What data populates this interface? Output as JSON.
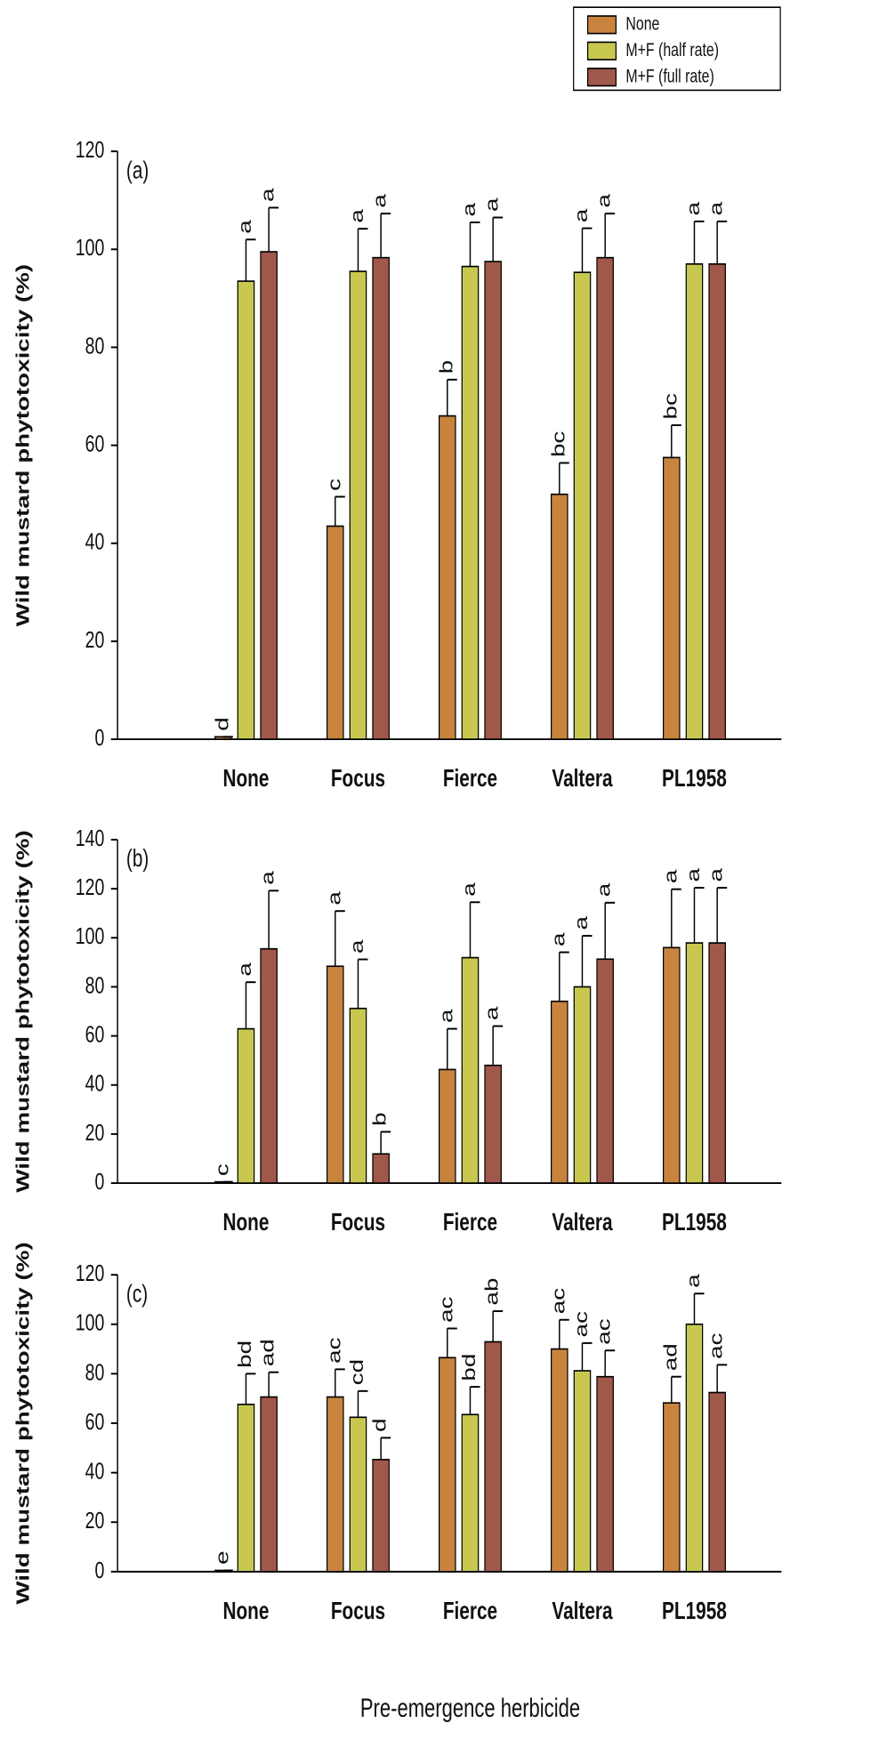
{
  "chart_data": [
    {
      "type": "bar",
      "panel_label": "(a)",
      "ylabel": "Wild mustard phytotoxicity (%)",
      "categories": [
        "None",
        "Focus",
        "Fierce",
        "Valtera",
        "PL1958"
      ],
      "ylim": [
        0,
        120
      ],
      "yticks": [
        0,
        20,
        40,
        60,
        80,
        100,
        120
      ],
      "series": [
        {
          "name": "None",
          "color": "#c8843f",
          "values": [
            0.5,
            43.5,
            66,
            50,
            57.5
          ],
          "errors": [
            0,
            6,
            7.4,
            6.4,
            6.6
          ],
          "letters": [
            "d",
            "c",
            "b",
            "bc",
            "bc"
          ]
        },
        {
          "name": "M+F (half rate)",
          "color": "#c8c850",
          "values": [
            93.5,
            95.5,
            96.5,
            95.3,
            97
          ],
          "errors": [
            8.5,
            8.7,
            9,
            9,
            8.7
          ],
          "letters": [
            "a",
            "a",
            "a",
            "a",
            "a"
          ]
        },
        {
          "name": "M+F (full rate)",
          "color": "#a0584a",
          "values": [
            99.5,
            98.3,
            97.5,
            98.3,
            97
          ],
          "errors": [
            9,
            9,
            9,
            9,
            8.7
          ],
          "letters": [
            "a",
            "a",
            "a",
            "a",
            "a"
          ]
        }
      ]
    },
    {
      "type": "bar",
      "panel_label": "(b)",
      "ylabel": "Wild mustard phytotoxicity (%)",
      "categories": [
        "None",
        "Focus",
        "Fierce",
        "Valtera",
        "PL1958"
      ],
      "ylim": [
        0,
        140
      ],
      "yticks": [
        0,
        20,
        40,
        60,
        80,
        100,
        120,
        140
      ],
      "series": [
        {
          "color": "#c8843f",
          "values": [
            0.5,
            88.4,
            46.3,
            74.1,
            96
          ],
          "errors": [
            0,
            22.5,
            16.6,
            20,
            23.8
          ],
          "letters": [
            "c",
            "a",
            "a",
            "a",
            "a"
          ]
        },
        {
          "color": "#c8c850",
          "values": [
            62.9,
            71.2,
            91.9,
            80,
            97.9
          ],
          "errors": [
            19,
            20,
            22.6,
            20.8,
            22.5
          ],
          "letters": [
            "a",
            "a",
            "a",
            "a",
            "a"
          ]
        },
        {
          "color": "#a0584a",
          "values": [
            95.5,
            11.9,
            48,
            91.3,
            97.9
          ],
          "errors": [
            23.7,
            9,
            16,
            23,
            22.5
          ],
          "letters": [
            "a",
            "b",
            "a",
            "a",
            "a"
          ]
        }
      ]
    },
    {
      "type": "bar",
      "panel_label": "(c)",
      "ylabel": "Wild mustard phytotoxicity (%)",
      "xlabel": "Pre-emergence herbicide",
      "categories": [
        "None",
        "Focus",
        "Fierce",
        "Valtera",
        "PL1958"
      ],
      "ylim": [
        0,
        120
      ],
      "yticks": [
        0,
        20,
        40,
        60,
        80,
        100,
        120
      ],
      "series": [
        {
          "color": "#c8843f",
          "values": [
            0.5,
            70.6,
            86.5,
            90,
            68.2
          ],
          "errors": [
            0,
            11.2,
            11.8,
            11.8,
            10.6
          ],
          "letters": [
            "e",
            "ac",
            "ac",
            "ac",
            "ad"
          ]
        },
        {
          "color": "#c8c850",
          "values": [
            67.6,
            62.4,
            63.5,
            81.2,
            100
          ],
          "errors": [
            12.4,
            10.6,
            11.2,
            11.2,
            12.4
          ],
          "letters": [
            "bd",
            "cd",
            "bd",
            "ac",
            "a"
          ]
        },
        {
          "color": "#a0584a",
          "values": [
            70.6,
            45.3,
            92.9,
            78.8,
            72.4
          ],
          "errors": [
            10,
            8.8,
            12.4,
            10.6,
            11.2
          ],
          "letters": [
            "ad",
            "d",
            "ab",
            "ac",
            "ac"
          ]
        }
      ]
    }
  ]
}
